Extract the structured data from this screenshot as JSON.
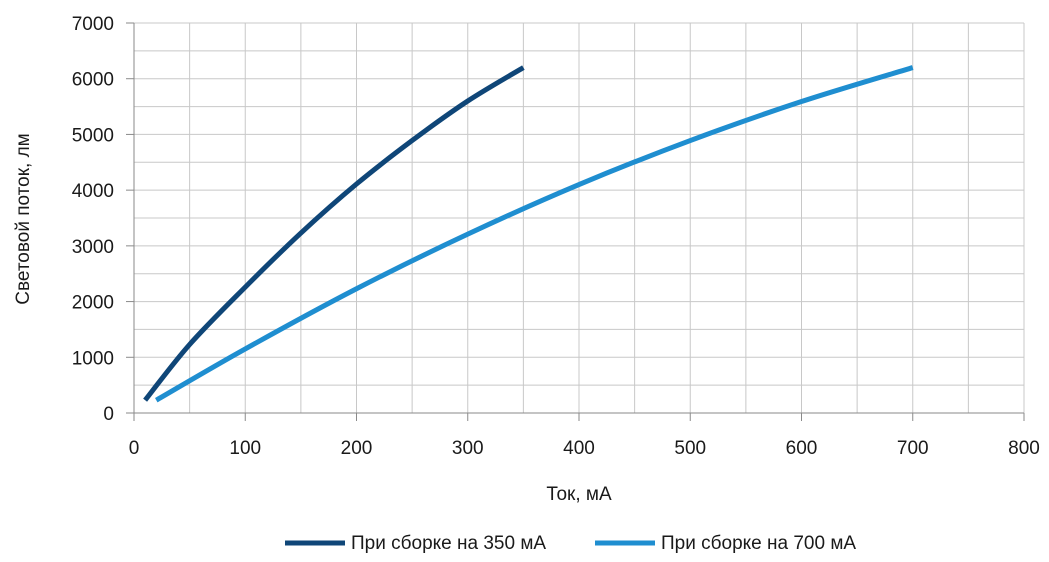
{
  "chart_data": {
    "type": "line",
    "title": "",
    "xlabel": "Ток, мА",
    "ylabel": "Световой поток, лм",
    "xlim": [
      0,
      800
    ],
    "ylim": [
      0,
      7000
    ],
    "xticks": [
      0,
      100,
      200,
      300,
      400,
      500,
      600,
      700,
      800
    ],
    "yticks": [
      0,
      1000,
      2000,
      3000,
      4000,
      5000,
      6000,
      7000
    ],
    "grid": true,
    "legend_position": "bottom",
    "series": [
      {
        "name": "При сборке на 350 мА",
        "color": "#0f4678",
        "x": [
          10,
          50,
          100,
          150,
          200,
          250,
          300,
          350
        ],
        "y": [
          230,
          1230,
          2260,
          3230,
          4110,
          4890,
          5600,
          6200
        ]
      },
      {
        "name": "При сборке на 700 мА",
        "color": "#1f8ed0",
        "x": [
          20,
          100,
          200,
          300,
          400,
          500,
          600,
          700
        ],
        "y": [
          230,
          1150,
          2230,
          3210,
          4100,
          4890,
          5590,
          6200
        ]
      }
    ]
  }
}
